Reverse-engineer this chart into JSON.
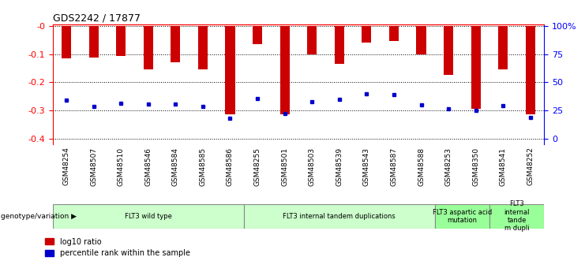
{
  "title": "GDS2242 / 17877",
  "samples": [
    "GSM48254",
    "GSM48507",
    "GSM48510",
    "GSM48546",
    "GSM48584",
    "GSM48585",
    "GSM48586",
    "GSM48255",
    "GSM48501",
    "GSM48503",
    "GSM48539",
    "GSM48543",
    "GSM48587",
    "GSM48588",
    "GSM48253",
    "GSM48350",
    "GSM48541",
    "GSM48252"
  ],
  "log10_ratio": [
    -0.115,
    -0.112,
    -0.108,
    -0.155,
    -0.13,
    -0.155,
    -0.315,
    -0.065,
    -0.313,
    -0.1,
    -0.135,
    -0.06,
    -0.055,
    -0.1,
    -0.175,
    -0.295,
    -0.155,
    -0.315
  ],
  "percentile_rank_pos": [
    -0.265,
    -0.285,
    -0.275,
    -0.278,
    -0.278,
    -0.285,
    -0.328,
    -0.257,
    -0.31,
    -0.268,
    -0.26,
    -0.24,
    -0.245,
    -0.28,
    -0.295,
    -0.3,
    -0.282,
    -0.325
  ],
  "groups": [
    {
      "label": "FLT3 wild type",
      "start": 0,
      "end": 7,
      "color": "#ccffcc"
    },
    {
      "label": "FLT3 internal tandem duplications",
      "start": 7,
      "end": 14,
      "color": "#ccffcc"
    },
    {
      "label": "FLT3 aspartic acid\nmutation",
      "start": 14,
      "end": 16,
      "color": "#99ff99"
    },
    {
      "label": "FLT3\ninternal\ntande\nm dupli",
      "start": 16,
      "end": 18,
      "color": "#99ff99"
    }
  ],
  "bar_color": "#cc0000",
  "dot_color": "#0000cc",
  "ylim": [
    -0.42,
    0.005
  ],
  "y_ticks": [
    0.0,
    -0.1,
    -0.2,
    -0.3,
    -0.4
  ],
  "y_ticklabels": [
    "-0",
    "-0.1",
    "-0.2",
    "-0.3",
    "-0.4"
  ]
}
